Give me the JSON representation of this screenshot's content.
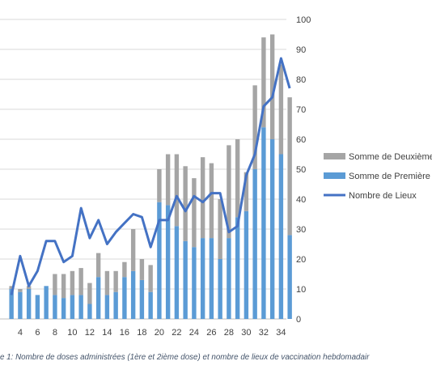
{
  "caption": "e 1: Nombre de doses administrées (1ère et 2ième dose) et nombre de lieux de vaccination hebdomadair",
  "chart_data": {
    "type": "bar",
    "x": [
      3,
      4,
      5,
      6,
      7,
      8,
      9,
      10,
      11,
      12,
      13,
      14,
      15,
      16,
      17,
      18,
      19,
      20,
      21,
      22,
      23,
      24,
      25,
      26,
      27,
      28,
      29,
      30,
      31,
      32,
      33,
      34,
      35
    ],
    "x_tick_labels": [
      "4",
      "6",
      "8",
      "10",
      "12",
      "14",
      "16",
      "18",
      "20",
      "22",
      "24",
      "26",
      "28",
      "30",
      "32",
      "34"
    ],
    "y_tick_labels_right": [
      "0",
      "10",
      "20",
      "30",
      "40",
      "50",
      "60",
      "70",
      "80",
      "90",
      "100"
    ],
    "ylim_right": [
      0,
      100
    ],
    "series": [
      {
        "name": "Somme de Première",
        "kind": "stacked-bar",
        "color": "#5B9BD5",
        "values": [
          10,
          9,
          10,
          8,
          11,
          8,
          7,
          8,
          8,
          5,
          14,
          8,
          9,
          14,
          16,
          13,
          9,
          39,
          38,
          31,
          26,
          24,
          27,
          27,
          20,
          27,
          34,
          36,
          50,
          64,
          60,
          55,
          28
        ]
      },
      {
        "name": "Somme de Deuxième",
        "kind": "stacked-bar",
        "color": "#A5A5A5",
        "values": [
          1,
          1,
          1,
          0,
          0,
          7,
          8,
          8,
          9,
          7,
          8,
          8,
          7,
          5,
          14,
          7,
          9,
          11,
          17,
          24,
          25,
          23,
          27,
          25,
          20,
          31,
          26,
          13,
          28,
          30,
          35,
          30,
          46
        ]
      },
      {
        "name": "Nombre de Lieux",
        "kind": "line",
        "color": "#4472C4",
        "values": [
          8,
          21,
          11,
          16,
          26,
          26,
          19,
          21,
          37,
          27,
          33,
          25,
          29,
          32,
          35,
          34,
          24,
          33,
          33,
          41,
          36,
          41,
          39,
          42,
          42,
          29,
          31,
          48,
          55,
          71,
          74,
          87,
          77
        ]
      }
    ],
    "legend": [
      "Somme de Deuxième",
      "Somme de Première",
      "Nombre de Lieux"
    ],
    "legend_position": "right",
    "grid": true
  }
}
